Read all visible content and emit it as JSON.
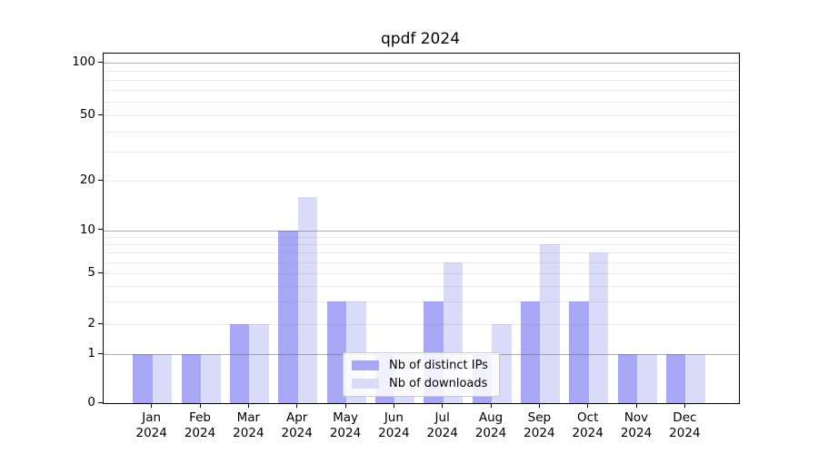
{
  "chart_data": {
    "type": "bar",
    "title": "qpdf 2024",
    "categories": [
      "Jan",
      "Feb",
      "Mar",
      "Apr",
      "May",
      "Jun",
      "Jul",
      "Aug",
      "Sep",
      "Oct",
      "Nov",
      "Dec"
    ],
    "x_year": "2024",
    "series": [
      {
        "name": "Nb of distinct IPs",
        "color": "#a7a7f5",
        "values": [
          1,
          1,
          2,
          10,
          3,
          1,
          3,
          1,
          3,
          3,
          1,
          1
        ]
      },
      {
        "name": "Nb of downloads",
        "color": "#dadaf9",
        "values": [
          1,
          1,
          2,
          16,
          3,
          1,
          6,
          2,
          8,
          7,
          1,
          1
        ]
      }
    ],
    "xlabel": "",
    "ylabel": "",
    "y_axis": {
      "tick_values": [
        0,
        1,
        2,
        5,
        10,
        20,
        50,
        100
      ],
      "tick_labels": [
        "0",
        "1",
        "2",
        "5",
        "10",
        "20",
        "50",
        "100"
      ],
      "decade_gridlines": [
        1,
        10,
        100
      ],
      "minor_gridlines": [
        2,
        3,
        4,
        5,
        6,
        7,
        8,
        9,
        20,
        30,
        40,
        50,
        60,
        70,
        80,
        90
      ],
      "ylim": [
        0,
        115
      ]
    },
    "legend": {
      "position": "lower center",
      "entries": [
        "Nb of distinct IPs",
        "Nb of downloads"
      ]
    },
    "grid": true,
    "colors": {
      "decade_grid": "#6e6e6e",
      "minor_grid": "#e0e0e0",
      "spine": "#000000",
      "background": "#ffffff"
    }
  }
}
